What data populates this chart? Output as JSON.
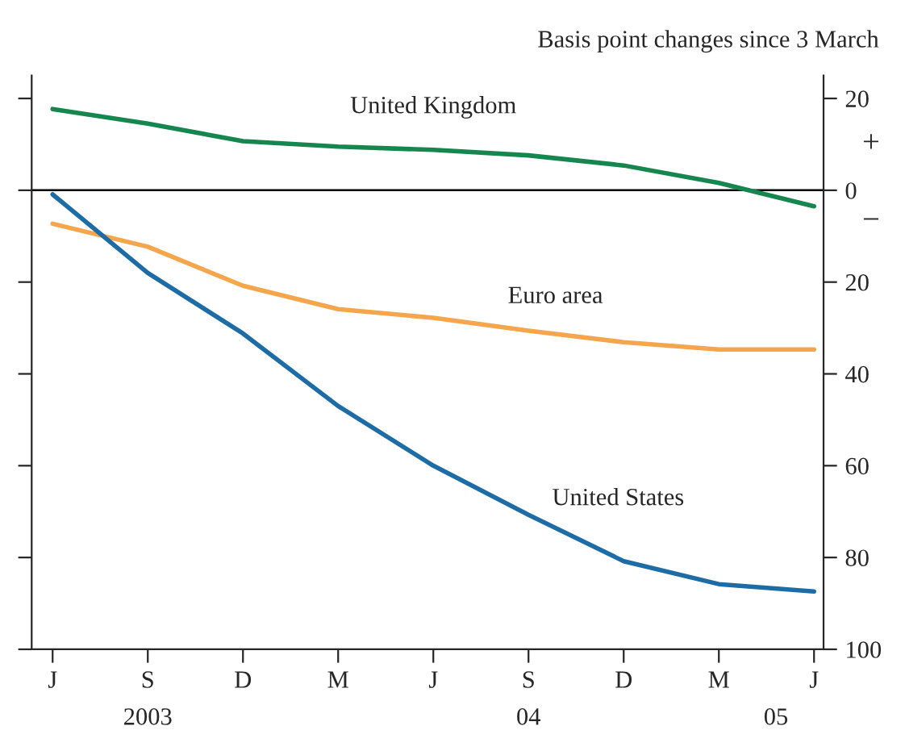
{
  "chart_data": {
    "type": "line",
    "ylabel": "Basis point changes since 3 March",
    "categories": [
      "J",
      "S",
      "D",
      "M",
      "J",
      "S",
      "D",
      "M",
      "J"
    ],
    "series": [
      {
        "name": "United Kingdom",
        "color": "#16864f",
        "values": [
          17.7,
          14.5,
          10.7,
          9.5,
          8.8,
          7.6,
          5.4,
          1.6,
          -3.5
        ]
      },
      {
        "name": "Euro area",
        "color": "#f5a64c",
        "values": [
          -7.3,
          -12.3,
          -20.8,
          -25.9,
          -27.8,
          -30.6,
          -33.1,
          -34.7,
          -34.7
        ]
      },
      {
        "name": "United States",
        "color": "#1e6ca6",
        "values": [
          -0.9,
          -18,
          -31.2,
          -47,
          -60,
          -70.7,
          -80.8,
          -85.8,
          -87.4
        ]
      }
    ],
    "ylim": [
      -100,
      25
    ],
    "yticks": [
      {
        "value": 20,
        "label": "20"
      },
      0,
      {
        "value": -20,
        "label": "20"
      },
      {
        "value": -40,
        "label": "40"
      },
      {
        "value": -60,
        "label": "60"
      },
      {
        "value": -80,
        "label": "80"
      },
      {
        "value": -100,
        "label": "100"
      }
    ],
    "ref_lines": [
      {
        "axis": "y",
        "value": 0,
        "color": "#000000"
      }
    ],
    "annotations": [
      "+",
      "−",
      "2003",
      "04",
      "05"
    ],
    "grid": false,
    "legend": false,
    "marker": "none",
    "line_style": "solid"
  }
}
